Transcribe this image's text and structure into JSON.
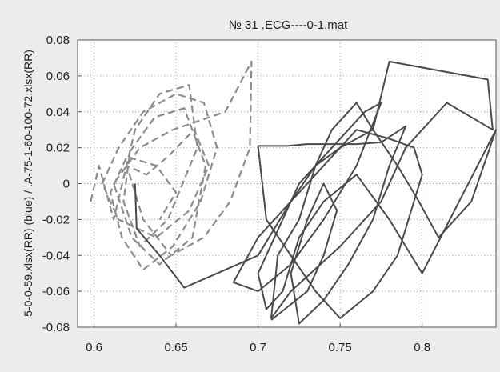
{
  "chart_data": {
    "type": "line",
    "title": "№ 31 .ECG----0-1.mat",
    "xlabel": "",
    "ylabel": "5-0-0-59.xlsx(RR) (blue)  /  .A-75-1-60-100-72.xlsx(RR)",
    "xlim": [
      0.59,
      0.845
    ],
    "ylim": [
      -0.08,
      0.08
    ],
    "xticks": [
      0.6,
      0.65,
      0.7,
      0.75,
      0.8
    ],
    "xtick_labels": [
      "0.6",
      "0.65",
      "0.7",
      "0.75",
      "0.8"
    ],
    "yticks": [
      0.08,
      0.06,
      0.04,
      0.02,
      0,
      -0.02,
      -0.04,
      -0.06,
      -0.08
    ],
    "ytick_labels": [
      "0.08",
      "0.06",
      "0.04",
      "0.02",
      "0",
      "-0.02",
      "-0.04",
      "-0.06",
      "-0.08"
    ],
    "grid": true,
    "legend": false,
    "series": [
      {
        "style": "dashed",
        "color": "#8c8c8c",
        "points": [
          [
            0.598,
            -0.01
          ],
          [
            0.603,
            0.01
          ],
          [
            0.612,
            -0.02
          ],
          [
            0.625,
            0.03
          ],
          [
            0.64,
            0.05
          ],
          [
            0.658,
            0.055
          ],
          [
            0.663,
            0.02
          ],
          [
            0.645,
            -0.02
          ],
          [
            0.628,
            -0.035
          ],
          [
            0.618,
            -0.01
          ],
          [
            0.622,
            0.018
          ],
          [
            0.637,
            0.037
          ],
          [
            0.655,
            0.042
          ],
          [
            0.668,
            0.01
          ],
          [
            0.66,
            -0.03
          ],
          [
            0.64,
            -0.045
          ],
          [
            0.623,
            -0.03
          ],
          [
            0.612,
            0.0
          ],
          [
            0.628,
            0.02
          ],
          [
            0.648,
            0.03
          ],
          [
            0.68,
            0.04
          ],
          [
            0.696,
            0.068
          ],
          [
            0.695,
            0.02
          ],
          [
            0.683,
            -0.01
          ],
          [
            0.667,
            -0.03
          ],
          [
            0.647,
            -0.04
          ],
          [
            0.63,
            -0.02
          ],
          [
            0.62,
            0.01
          ],
          [
            0.632,
            0.005
          ],
          [
            0.645,
            0.015
          ],
          [
            0.661,
            0.03
          ],
          [
            0.67,
            0.01
          ],
          [
            0.658,
            -0.015
          ],
          [
            0.638,
            -0.03
          ],
          [
            0.615,
            -0.02
          ],
          [
            0.605,
            0.0
          ],
          [
            0.615,
            0.02
          ],
          [
            0.63,
            0.04
          ],
          [
            0.65,
            0.05
          ],
          [
            0.667,
            0.045
          ],
          [
            0.675,
            0.02
          ],
          [
            0.665,
            -0.01
          ],
          [
            0.648,
            -0.035
          ],
          [
            0.63,
            -0.048
          ],
          [
            0.617,
            -0.03
          ],
          [
            0.61,
            -0.005
          ],
          [
            0.62,
            0.015
          ],
          [
            0.638,
            0.01
          ],
          [
            0.65,
            -0.005
          ],
          [
            0.64,
            -0.02
          ]
        ]
      },
      {
        "style": "solid",
        "color": "#4a4a4a",
        "points": [
          [
            0.625,
            0.0
          ],
          [
            0.626,
            -0.025
          ],
          [
            0.64,
            -0.04
          ],
          [
            0.655,
            -0.058
          ],
          [
            0.7,
            -0.04
          ],
          [
            0.72,
            -0.01
          ],
          [
            0.735,
            0.01
          ],
          [
            0.75,
            0.02
          ],
          [
            0.76,
            0.025
          ],
          [
            0.77,
            0.03
          ],
          [
            0.78,
            0.068
          ],
          [
            0.84,
            0.058
          ],
          [
            0.843,
            0.03
          ],
          [
            0.815,
            0.045
          ],
          [
            0.79,
            0.02
          ],
          [
            0.775,
            -0.01
          ],
          [
            0.75,
            -0.035
          ],
          [
            0.72,
            -0.06
          ],
          [
            0.708,
            -0.075
          ],
          [
            0.712,
            -0.04
          ],
          [
            0.725,
            -0.02
          ],
          [
            0.735,
            0.01
          ],
          [
            0.745,
            0.03
          ],
          [
            0.76,
            0.045
          ],
          [
            0.77,
            0.03
          ],
          [
            0.785,
            0.01
          ],
          [
            0.798,
            -0.01
          ],
          [
            0.81,
            -0.03
          ],
          [
            0.83,
            -0.01
          ],
          [
            0.845,
            0.03
          ],
          [
            0.8,
            -0.05
          ],
          [
            0.78,
            -0.02
          ],
          [
            0.76,
            0.005
          ],
          [
            0.74,
            -0.01
          ],
          [
            0.725,
            -0.03
          ],
          [
            0.715,
            -0.06
          ],
          [
            0.705,
            -0.07
          ],
          [
            0.7,
            -0.05
          ],
          [
            0.71,
            -0.03
          ],
          [
            0.725,
            0.0
          ],
          [
            0.745,
            0.02
          ],
          [
            0.765,
            0.04
          ],
          [
            0.775,
            0.045
          ],
          [
            0.76,
            0.01
          ],
          [
            0.74,
            -0.02
          ],
          [
            0.72,
            -0.045
          ],
          [
            0.7,
            -0.06
          ],
          [
            0.685,
            -0.055
          ],
          [
            0.7,
            -0.03
          ],
          [
            0.72,
            -0.01
          ],
          [
            0.74,
            0.01
          ],
          [
            0.76,
            0.03
          ],
          [
            0.78,
            0.025
          ],
          [
            0.795,
            0.02
          ],
          [
            0.8,
            0.005
          ],
          [
            0.785,
            -0.04
          ],
          [
            0.77,
            -0.06
          ],
          [
            0.75,
            -0.075
          ],
          [
            0.735,
            -0.06
          ],
          [
            0.72,
            -0.04
          ],
          [
            0.705,
            -0.02
          ],
          [
            0.7,
            0.021
          ],
          [
            0.718,
            0.021
          ],
          [
            0.73,
            0.022
          ],
          [
            0.745,
            0.022
          ],
          [
            0.76,
            0.022
          ],
          [
            0.775,
            0.023
          ],
          [
            0.79,
            0.032
          ],
          [
            0.78,
            0.01
          ],
          [
            0.77,
            -0.02
          ],
          [
            0.755,
            -0.045
          ],
          [
            0.74,
            -0.065
          ],
          [
            0.725,
            -0.078
          ],
          [
            0.72,
            -0.05
          ],
          [
            0.73,
            -0.02
          ],
          [
            0.74,
            0.0
          ],
          [
            0.748,
            -0.015
          ],
          [
            0.74,
            -0.04
          ],
          [
            0.73,
            -0.06
          ],
          [
            0.708,
            -0.076
          ]
        ]
      }
    ]
  }
}
